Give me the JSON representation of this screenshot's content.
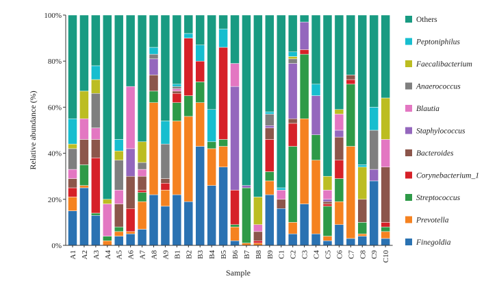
{
  "chart_data": {
    "type": "bar",
    "stacked": true,
    "xlabel": "Sample",
    "ylabel": "Relative abundance (%)",
    "ylim": [
      0,
      100
    ],
    "y_ticks": [
      "0%",
      "20%",
      "40%",
      "60%",
      "80%",
      "100%"
    ],
    "legend_position": "right",
    "categories": [
      "A1",
      "A2",
      "A3",
      "A4",
      "A5",
      "A6",
      "A7",
      "A8",
      "A9",
      "B1",
      "B2",
      "B3",
      "B4",
      "B5",
      "B6",
      "B7",
      "B8",
      "B9",
      "C1",
      "C2",
      "C3",
      "C4",
      "C5",
      "C6",
      "C7",
      "C8",
      "C9",
      "C10"
    ],
    "series": [
      {
        "name": "Finegoldia",
        "italic": true,
        "color": "#2a72b2",
        "values": [
          15,
          25,
          13,
          0,
          4,
          5,
          7,
          22,
          17,
          22,
          19,
          43,
          26,
          34,
          2,
          0,
          0,
          22,
          16,
          5,
          18,
          5,
          2,
          9,
          3,
          4,
          28,
          3
        ]
      },
      {
        "name": "Prevotella",
        "italic": true,
        "color": "#f58220",
        "values": [
          6,
          1,
          0,
          2,
          2,
          1,
          12,
          40,
          7,
          32,
          37,
          19,
          16,
          9,
          6,
          1,
          1,
          6,
          0,
          5,
          37,
          32,
          2,
          10,
          40,
          1,
          0,
          3
        ]
      },
      {
        "name": "Streptococcus",
        "italic": true,
        "color": "#2e9a48",
        "values": [
          0,
          9,
          1,
          2,
          2,
          0,
          4,
          5,
          0,
          8,
          9,
          9,
          3,
          3,
          1,
          24,
          0,
          4,
          0,
          33,
          28,
          11,
          13,
          10,
          27,
          5,
          0,
          2
        ]
      },
      {
        "name": "Corynebacterium_1",
        "italic": true,
        "color": "#d62128",
        "values": [
          4,
          0,
          24,
          0,
          0,
          10,
          1,
          0,
          3,
          4,
          25,
          9,
          0,
          40,
          15,
          0,
          1,
          14,
          0,
          10,
          2,
          0,
          1,
          8,
          2,
          0,
          0,
          2
        ]
      },
      {
        "name": "Bacteroides",
        "italic": true,
        "color": "#8c564b",
        "values": [
          4,
          11,
          8,
          0,
          10,
          14,
          6,
          7,
          2,
          1,
          0,
          0,
          0,
          0,
          0,
          0,
          4,
          5,
          4,
          2,
          0,
          0,
          1,
          10,
          2,
          10,
          0,
          24
        ]
      },
      {
        "name": "Staphylococcus",
        "italic": true,
        "color": "#9467bd",
        "values": [
          0,
          0,
          0,
          0,
          0,
          12,
          0,
          7,
          0,
          0,
          0,
          0,
          0,
          0,
          45,
          1,
          0,
          1,
          0,
          24,
          12,
          17,
          1,
          3,
          0,
          0,
          5,
          0
        ]
      },
      {
        "name": "Blautia",
        "italic": true,
        "color": "#e377c2",
        "values": [
          4,
          9,
          5,
          14,
          6,
          27,
          3,
          0,
          0,
          1,
          0,
          0,
          0,
          0,
          10,
          0,
          3,
          0,
          4,
          0,
          0,
          0,
          4,
          7,
          0,
          0,
          0,
          12
        ]
      },
      {
        "name": "Anaerococcus",
        "italic": true,
        "color": "#7f7f7f",
        "values": [
          9,
          0,
          15,
          0,
          13,
          0,
          3,
          2,
          15,
          1,
          0,
          0,
          0,
          0,
          0,
          0,
          0,
          5,
          0,
          2,
          0,
          0,
          0,
          0,
          0,
          0,
          17,
          0
        ]
      },
      {
        "name": "Faecalibacterium",
        "italic": true,
        "color": "#bcbd22",
        "values": [
          2,
          12,
          6,
          2,
          4,
          0,
          9,
          0,
          0,
          0,
          0,
          0,
          0,
          0,
          0,
          0,
          12,
          0,
          0,
          1,
          0,
          0,
          6,
          2,
          0,
          14,
          0,
          18
        ]
      },
      {
        "name": "Peptoniphilus",
        "italic": true,
        "color": "#17becf",
        "values": [
          11,
          0,
          6,
          0,
          5,
          0,
          0,
          3,
          10,
          1,
          2,
          7,
          14,
          8,
          0,
          0,
          0,
          1,
          1,
          2,
          0,
          5,
          0,
          0,
          0,
          1,
          10,
          0
        ]
      },
      {
        "name": "Others",
        "italic": false,
        "color": "#199b82",
        "values": [
          45,
          33,
          22,
          80,
          54,
          31,
          55,
          14,
          46,
          30,
          8,
          13,
          41,
          6,
          21,
          74,
          79,
          42,
          75,
          16,
          3,
          30,
          70,
          41,
          26,
          65,
          40,
          36
        ]
      }
    ]
  }
}
